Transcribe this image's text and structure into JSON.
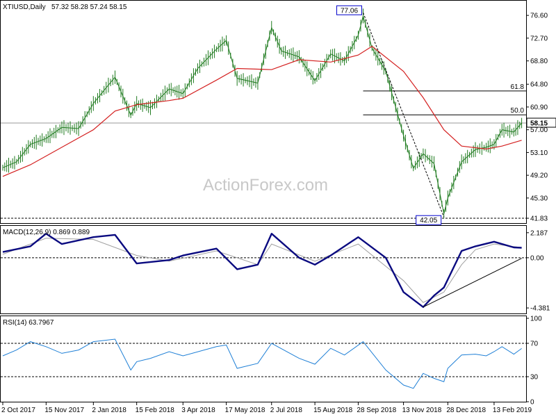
{
  "header": {
    "symbol": "XTIUSD,Daily",
    "ohlc": "57.32 58.28 57.24 58.15"
  },
  "watermark": "ActionForex.com",
  "chart_data": [
    {
      "type": "candlestick",
      "title": "XTIUSD,Daily",
      "ylim": [
        41.0,
        79.0
      ],
      "y_ticks": [
        "76.60",
        "72.70",
        "68.80",
        "64.80",
        "60.90",
        "57.00",
        "53.10",
        "49.20",
        "45.30",
        "41.83"
      ],
      "y_tick_values": [
        76.6,
        72.7,
        68.8,
        64.8,
        60.9,
        57.0,
        53.1,
        49.2,
        45.3,
        41.83
      ],
      "last_price": "58.15",
      "last_price_value": 58.15,
      "swing_high": {
        "label": "77.06",
        "value": 77.06,
        "date": "3 Oct 2018"
      },
      "swing_low": {
        "label": "42.05",
        "value": 42.05,
        "date": "24 Dec 2018"
      },
      "support_line": {
        "label": "41.83",
        "value": 41.83
      },
      "fib_levels": [
        {
          "label": "61.8",
          "value": 63.65
        },
        {
          "label": "50.0",
          "value": 59.56
        }
      ],
      "price_series": [
        {
          "date": "2 Oct 2017",
          "close": 50.5
        },
        {
          "date": "16 Oct 2017",
          "close": 51.5
        },
        {
          "date": "30 Oct 2017",
          "close": 54.5
        },
        {
          "date": "15 Nov 2017",
          "close": 55.5
        },
        {
          "date": "1 Dec 2017",
          "close": 57.4
        },
        {
          "date": "18 Dec 2017",
          "close": 57.2
        },
        {
          "date": "2 Jan 2018",
          "close": 61.5
        },
        {
          "date": "15 Jan 2018",
          "close": 64.2
        },
        {
          "date": "24 Jan 2018",
          "close": 66.0
        },
        {
          "date": "9 Feb 2018",
          "close": 59.5
        },
        {
          "date": "15 Feb 2018",
          "close": 61.5
        },
        {
          "date": "1 Mar 2018",
          "close": 60.8
        },
        {
          "date": "20 Mar 2018",
          "close": 64.0
        },
        {
          "date": "3 Apr 2018",
          "close": 63.2
        },
        {
          "date": "18 Apr 2018",
          "close": 67.5
        },
        {
          "date": "7 May 2018",
          "close": 70.8
        },
        {
          "date": "17 May 2018",
          "close": 72.3
        },
        {
          "date": "28 May 2018",
          "close": 65.8
        },
        {
          "date": "18 Jun 2018",
          "close": 65.0
        },
        {
          "date": "2 Jul 2018",
          "close": 74.5
        },
        {
          "date": "12 Jul 2018",
          "close": 70.5
        },
        {
          "date": "30 Jul 2018",
          "close": 69.5
        },
        {
          "date": "15 Aug 2018",
          "close": 65.4
        },
        {
          "date": "31 Aug 2018",
          "close": 70.0
        },
        {
          "date": "14 Sep 2018",
          "close": 68.8
        },
        {
          "date": "28 Sep 2018",
          "close": 73.2
        },
        {
          "date": "3 Oct 2018",
          "close": 76.5
        },
        {
          "date": "12 Oct 2018",
          "close": 71.0
        },
        {
          "date": "26 Oct 2018",
          "close": 67.0
        },
        {
          "date": "13 Nov 2018",
          "close": 56.0
        },
        {
          "date": "23 Nov 2018",
          "close": 50.4
        },
        {
          "date": "3 Dec 2018",
          "close": 52.9
        },
        {
          "date": "14 Dec 2018",
          "close": 51.2
        },
        {
          "date": "24 Dec 2018",
          "close": 42.6
        },
        {
          "date": "28 Dec 2018",
          "close": 45.3
        },
        {
          "date": "11 Jan 2019",
          "close": 51.5
        },
        {
          "date": "25 Jan 2019",
          "close": 53.6
        },
        {
          "date": "5 Feb 2019",
          "close": 54.0
        },
        {
          "date": "13 Feb 2019",
          "close": 54.5
        },
        {
          "date": "21 Feb 2019",
          "close": 57.0
        },
        {
          "date": "5 Mar 2019",
          "close": 56.6
        },
        {
          "date": "13 Mar 2019",
          "close": 58.15
        }
      ],
      "sma_series": [
        {
          "date": "2 Oct 2017",
          "value": 49.0
        },
        {
          "date": "30 Oct 2017",
          "value": 51.0
        },
        {
          "date": "1 Dec 2017",
          "value": 54.0
        },
        {
          "date": "2 Jan 2018",
          "value": 57.0
        },
        {
          "date": "24 Jan 2018",
          "value": 60.2
        },
        {
          "date": "15 Feb 2018",
          "value": 61.3
        },
        {
          "date": "20 Mar 2018",
          "value": 62.0
        },
        {
          "date": "3 Apr 2018",
          "value": 62.4
        },
        {
          "date": "7 May 2018",
          "value": 65.5
        },
        {
          "date": "28 May 2018",
          "value": 67.5
        },
        {
          "date": "2 Jul 2018",
          "value": 67.3
        },
        {
          "date": "30 Jul 2018",
          "value": 69.0
        },
        {
          "date": "31 Aug 2018",
          "value": 68.6
        },
        {
          "date": "28 Sep 2018",
          "value": 69.8
        },
        {
          "date": "12 Oct 2018",
          "value": 71.3
        },
        {
          "date": "13 Nov 2018",
          "value": 67.0
        },
        {
          "date": "3 Dec 2018",
          "value": 62.5
        },
        {
          "date": "24 Dec 2018",
          "value": 57.0
        },
        {
          "date": "11 Jan 2019",
          "value": 54.2
        },
        {
          "date": "5 Feb 2019",
          "value": 53.7
        },
        {
          "date": "21 Feb 2019",
          "value": 54.2
        },
        {
          "date": "13 Mar 2019",
          "value": 55.2
        }
      ]
    },
    {
      "type": "line",
      "title": "MACD(12,26,9) 0.869 0.889",
      "ylim": [
        -4.8,
        2.6
      ],
      "y_ticks": [
        "2.187",
        "0.00",
        "-4.381"
      ],
      "y_tick_values": [
        2.187,
        0.0,
        -4.381
      ],
      "series": [
        {
          "name": "MACD",
          "points": [
            {
              "date": "2 Oct 2017",
              "value": 0.5
            },
            {
              "date": "30 Oct 2017",
              "value": 1.0
            },
            {
              "date": "15 Nov 2017",
              "value": 2.1
            },
            {
              "date": "1 Dec 2017",
              "value": 1.2
            },
            {
              "date": "2 Jan 2018",
              "value": 1.8
            },
            {
              "date": "24 Jan 2018",
              "value": 2.0
            },
            {
              "date": "15 Feb 2018",
              "value": -0.5
            },
            {
              "date": "20 Mar 2018",
              "value": -0.2
            },
            {
              "date": "3 Apr 2018",
              "value": 0.2
            },
            {
              "date": "7 May 2018",
              "value": 0.8
            },
            {
              "date": "28 May 2018",
              "value": -1.0
            },
            {
              "date": "18 Jun 2018",
              "value": -0.6
            },
            {
              "date": "2 Jul 2018",
              "value": 2.1
            },
            {
              "date": "30 Jul 2018",
              "value": 0.0
            },
            {
              "date": "15 Aug 2018",
              "value": -0.6
            },
            {
              "date": "31 Aug 2018",
              "value": 0.2
            },
            {
              "date": "28 Sep 2018",
              "value": 1.8
            },
            {
              "date": "26 Oct 2018",
              "value": 0.0
            },
            {
              "date": "13 Nov 2018",
              "value": -3.0
            },
            {
              "date": "3 Dec 2018",
              "value": -4.3
            },
            {
              "date": "14 Dec 2018",
              "value": -3.3
            },
            {
              "date": "24 Dec 2018",
              "value": -2.6
            },
            {
              "date": "11 Jan 2019",
              "value": 0.6
            },
            {
              "date": "25 Jan 2019",
              "value": 1.0
            },
            {
              "date": "13 Feb 2019",
              "value": 1.4
            },
            {
              "date": "5 Mar 2019",
              "value": 0.9
            },
            {
              "date": "13 Mar 2019",
              "value": 0.869
            }
          ]
        },
        {
          "name": "Signal",
          "points": [
            {
              "date": "2 Oct 2017",
              "value": 0.3
            },
            {
              "date": "15 Nov 2017",
              "value": 1.7
            },
            {
              "date": "2 Jan 2018",
              "value": 1.6
            },
            {
              "date": "15 Feb 2018",
              "value": 0.2
            },
            {
              "date": "20 Mar 2018",
              "value": -0.3
            },
            {
              "date": "7 May 2018",
              "value": 0.6
            },
            {
              "date": "18 Jun 2018",
              "value": -0.6
            },
            {
              "date": "2 Jul 2018",
              "value": 1.2
            },
            {
              "date": "15 Aug 2018",
              "value": -0.3
            },
            {
              "date": "28 Sep 2018",
              "value": 1.2
            },
            {
              "date": "13 Nov 2018",
              "value": -2.0
            },
            {
              "date": "3 Dec 2018",
              "value": -3.9
            },
            {
              "date": "24 Dec 2018",
              "value": -3.0
            },
            {
              "date": "11 Jan 2019",
              "value": -0.6
            },
            {
              "date": "25 Jan 2019",
              "value": 0.7
            },
            {
              "date": "13 Feb 2019",
              "value": 1.2
            },
            {
              "date": "13 Mar 2019",
              "value": 0.889
            }
          ]
        }
      ],
      "trendline": [
        {
          "date": "3 Dec 2018",
          "value": -4.3
        },
        {
          "date": "13 Mar 2019",
          "value": -0.05
        }
      ]
    },
    {
      "type": "line",
      "title": "RSI(14) 63.7967",
      "ylim": [
        0,
        100
      ],
      "y_ticks": [
        "100",
        "70",
        "30",
        "0"
      ],
      "y_tick_values": [
        100,
        70,
        30,
        0
      ],
      "levels": [
        70,
        30
      ],
      "series": [
        {
          "name": "RSI",
          "points": [
            {
              "date": "2 Oct 2017",
              "value": 55
            },
            {
              "date": "16 Oct 2017",
              "value": 62
            },
            {
              "date": "30 Oct 2017",
              "value": 72
            },
            {
              "date": "15 Nov 2017",
              "value": 66
            },
            {
              "date": "1 Dec 2017",
              "value": 58
            },
            {
              "date": "18 Dec 2017",
              "value": 62
            },
            {
              "date": "2 Jan 2018",
              "value": 72
            },
            {
              "date": "24 Jan 2018",
              "value": 75
            },
            {
              "date": "9 Feb 2018",
              "value": 38
            },
            {
              "date": "15 Feb 2018",
              "value": 48
            },
            {
              "date": "1 Mar 2018",
              "value": 52
            },
            {
              "date": "20 Mar 2018",
              "value": 60
            },
            {
              "date": "3 Apr 2018",
              "value": 55
            },
            {
              "date": "7 May 2018",
              "value": 66
            },
            {
              "date": "17 May 2018",
              "value": 68
            },
            {
              "date": "28 May 2018",
              "value": 40
            },
            {
              "date": "18 Jun 2018",
              "value": 46
            },
            {
              "date": "2 Jul 2018",
              "value": 70
            },
            {
              "date": "30 Jul 2018",
              "value": 52
            },
            {
              "date": "15 Aug 2018",
              "value": 45
            },
            {
              "date": "31 Aug 2018",
              "value": 64
            },
            {
              "date": "14 Sep 2018",
              "value": 56
            },
            {
              "date": "3 Oct 2018",
              "value": 72
            },
            {
              "date": "26 Oct 2018",
              "value": 38
            },
            {
              "date": "13 Nov 2018",
              "value": 20
            },
            {
              "date": "23 Nov 2018",
              "value": 16
            },
            {
              "date": "3 Dec 2018",
              "value": 34
            },
            {
              "date": "14 Dec 2018",
              "value": 28
            },
            {
              "date": "24 Dec 2018",
              "value": 24
            },
            {
              "date": "28 Dec 2018",
              "value": 40
            },
            {
              "date": "11 Jan 2019",
              "value": 56
            },
            {
              "date": "25 Jan 2019",
              "value": 57
            },
            {
              "date": "5 Feb 2019",
              "value": 55
            },
            {
              "date": "13 Feb 2019",
              "value": 60
            },
            {
              "date": "21 Feb 2019",
              "value": 66
            },
            {
              "date": "5 Mar 2019",
              "value": 57
            },
            {
              "date": "13 Mar 2019",
              "value": 63.8
            }
          ]
        }
      ]
    }
  ],
  "x_axis": {
    "ticks": [
      {
        "label": "2 Oct 2017",
        "date": "2 Oct 2017"
      },
      {
        "label": "15 Nov 2017",
        "date": "15 Nov 2017"
      },
      {
        "label": "2 Jan 2018",
        "date": "2 Jan 2018"
      },
      {
        "label": "15 Feb 2018",
        "date": "15 Feb 2018"
      },
      {
        "label": "3 Apr 2018",
        "date": "3 Apr 2018"
      },
      {
        "label": "17 May 2018",
        "date": "17 May 2018"
      },
      {
        "label": "2 Jul 2018",
        "date": "2 Jul 2018"
      },
      {
        "label": "15 Aug 2018",
        "date": "15 Aug 2018"
      },
      {
        "label": "28 Sep 2018",
        "date": "28 Sep 2018"
      },
      {
        "label": "13 Nov 2018",
        "date": "13 Nov 2018"
      },
      {
        "label": "28 Dec 2018",
        "date": "28 Dec 2018"
      },
      {
        "label": "13 Feb 2019",
        "date": "13 Feb 2019"
      }
    ],
    "range": [
      "2 Oct 2017",
      "14 Mar 2019"
    ]
  },
  "colors": {
    "price": "#1e7a1e",
    "sma": "#d42020",
    "macd": "#0a0a80",
    "signal": "#a0a0a0",
    "rsi": "#1e7fd6",
    "label_box": "#0000cc"
  }
}
